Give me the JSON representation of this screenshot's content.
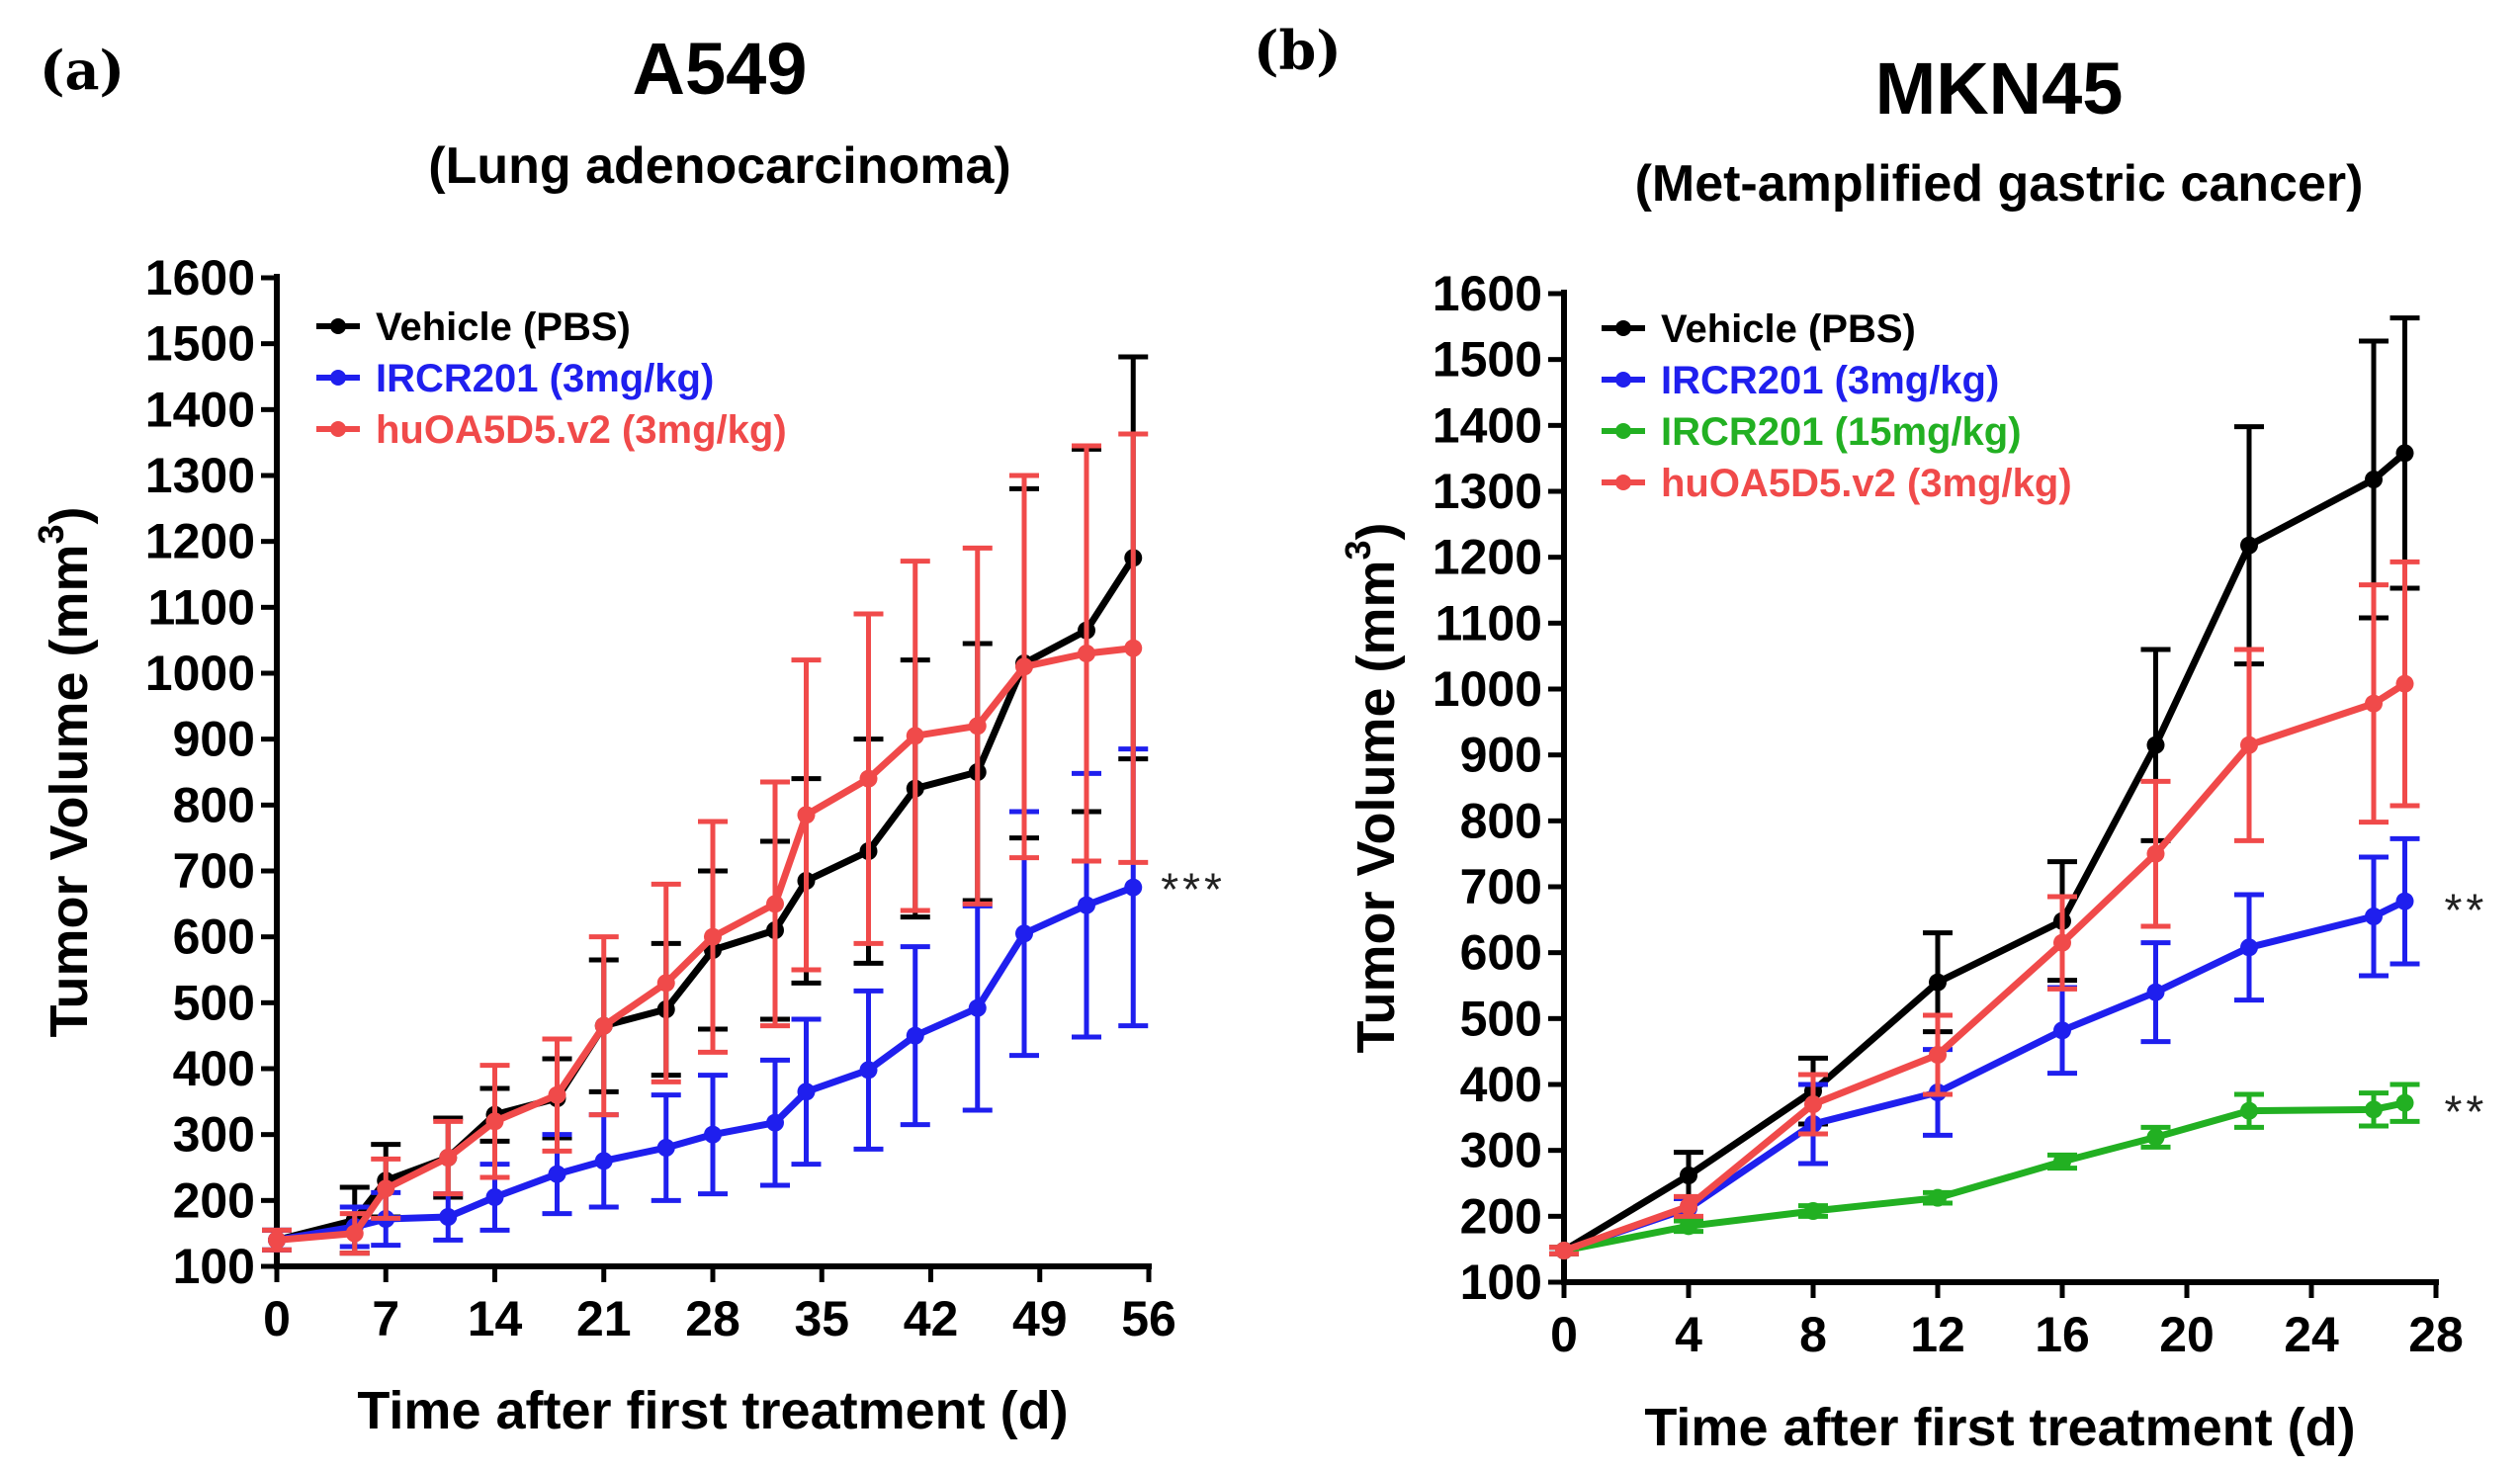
{
  "chart_data": [
    {
      "type": "line",
      "panel_label": "(a)",
      "title": "A549",
      "subtitle": "(Lung adenocarcinoma)",
      "xlabel": "Time after first treatment (d)",
      "ylabel": "Tumor Volume (mm",
      "ylabel_sup": "3",
      "ylabel_close": ")",
      "xlim": [
        0,
        56
      ],
      "ylim": [
        100,
        1600
      ],
      "xticks": [
        0,
        7,
        14,
        21,
        28,
        35,
        42,
        49,
        56
      ],
      "yticks": [
        100,
        200,
        300,
        400,
        500,
        600,
        700,
        800,
        900,
        1000,
        1100,
        1200,
        1300,
        1400,
        1500,
        1600
      ],
      "legend_position": "top-left",
      "series": [
        {
          "name": "Vehicle (PBS)",
          "color": "#000000",
          "x": [
            0,
            5,
            7,
            11,
            14,
            18,
            21,
            25,
            28,
            32,
            34,
            38,
            41,
            45,
            48,
            52,
            55
          ],
          "y": [
            140,
            170,
            230,
            265,
            330,
            355,
            465,
            490,
            580,
            610,
            685,
            730,
            825,
            850,
            1015,
            1065,
            1175
          ],
          "err": [
            15,
            50,
            55,
            60,
            40,
            60,
            100,
            100,
            120,
            135,
            155,
            170,
            195,
            195,
            265,
            275,
            305
          ]
        },
        {
          "name": "IRCR201 (3mg/kg)",
          "color": "#1f1fee",
          "x": [
            0,
            5,
            7,
            11,
            14,
            18,
            21,
            25,
            28,
            32,
            34,
            38,
            41,
            45,
            48,
            52,
            55
          ],
          "y": [
            140,
            160,
            172,
            175,
            205,
            240,
            260,
            280,
            300,
            318,
            365,
            398,
            450,
            492,
            605,
            648,
            675
          ],
          "err": [
            15,
            30,
            40,
            35,
            50,
            60,
            70,
            80,
            90,
            95,
            110,
            120,
            135,
            155,
            185,
            200,
            210
          ]
        },
        {
          "name": "huOA5D5.v2 (3mg/kg)",
          "color": "#f04a4a",
          "x": [
            0,
            5,
            7,
            11,
            14,
            18,
            21,
            25,
            28,
            32,
            34,
            38,
            41,
            45,
            48,
            52,
            55
          ],
          "y": [
            140,
            150,
            218,
            265,
            320,
            360,
            465,
            530,
            600,
            650,
            785,
            840,
            905,
            920,
            1010,
            1030,
            1038
          ],
          "err": [
            15,
            30,
            45,
            55,
            85,
            85,
            135,
            150,
            175,
            185,
            235,
            250,
            265,
            270,
            290,
            315,
            325
          ]
        }
      ],
      "annotations": [
        {
          "text": "***",
          "series": "IRCR201 (3mg/kg)"
        }
      ]
    },
    {
      "type": "line",
      "panel_label": "(b)",
      "title": "MKN45",
      "subtitle": "(Met-amplified gastric cancer)",
      "xlabel": "Time after first treatment (d)",
      "ylabel": "Tumor Volume (mm",
      "ylabel_sup": "3",
      "ylabel_close": ")",
      "xlim": [
        0,
        28
      ],
      "ylim": [
        100,
        1600
      ],
      "xticks": [
        0,
        4,
        8,
        12,
        16,
        20,
        24,
        28
      ],
      "yticks": [
        100,
        200,
        300,
        400,
        500,
        600,
        700,
        800,
        900,
        1000,
        1100,
        1200,
        1300,
        1400,
        1500,
        1600
      ],
      "legend_position": "top-left",
      "series": [
        {
          "name": "Vehicle (PBS)",
          "color": "#000000",
          "x": [
            0,
            4,
            8,
            12,
            16,
            19,
            22,
            26,
            27
          ],
          "y": [
            148,
            262,
            390,
            555,
            648,
            915,
            1218,
            1318,
            1358
          ],
          "err": [
            5,
            35,
            50,
            75,
            90,
            145,
            180,
            210,
            205
          ]
        },
        {
          "name": "IRCR201 (3mg/kg)",
          "color": "#1f1fee",
          "x": [
            0,
            4,
            8,
            12,
            16,
            19,
            22,
            26,
            27
          ],
          "y": [
            148,
            212,
            340,
            388,
            482,
            540,
            608,
            655,
            678
          ],
          "err": [
            5,
            15,
            60,
            65,
            65,
            75,
            80,
            90,
            95
          ]
        },
        {
          "name": "IRCR201 (15mg/kg)",
          "color": "#22b022",
          "x": [
            0,
            4,
            8,
            12,
            16,
            19,
            22,
            26,
            27
          ],
          "y": [
            148,
            185,
            208,
            228,
            283,
            320,
            360,
            362,
            372
          ],
          "err": [
            5,
            8,
            8,
            8,
            10,
            15,
            25,
            25,
            28
          ]
        },
        {
          "name": "huOA5D5.v2 (3mg/kg)",
          "color": "#f04a4a",
          "x": [
            0,
            4,
            8,
            12,
            16,
            19,
            22,
            26,
            27
          ],
          "y": [
            148,
            215,
            370,
            445,
            615,
            750,
            915,
            978,
            1008
          ],
          "err": [
            5,
            15,
            45,
            60,
            70,
            110,
            145,
            180,
            185
          ]
        }
      ],
      "annotations": [
        {
          "text": "**",
          "series": "IRCR201 (3mg/kg)"
        },
        {
          "text": "**",
          "series": "IRCR201 (15mg/kg)"
        }
      ]
    }
  ]
}
